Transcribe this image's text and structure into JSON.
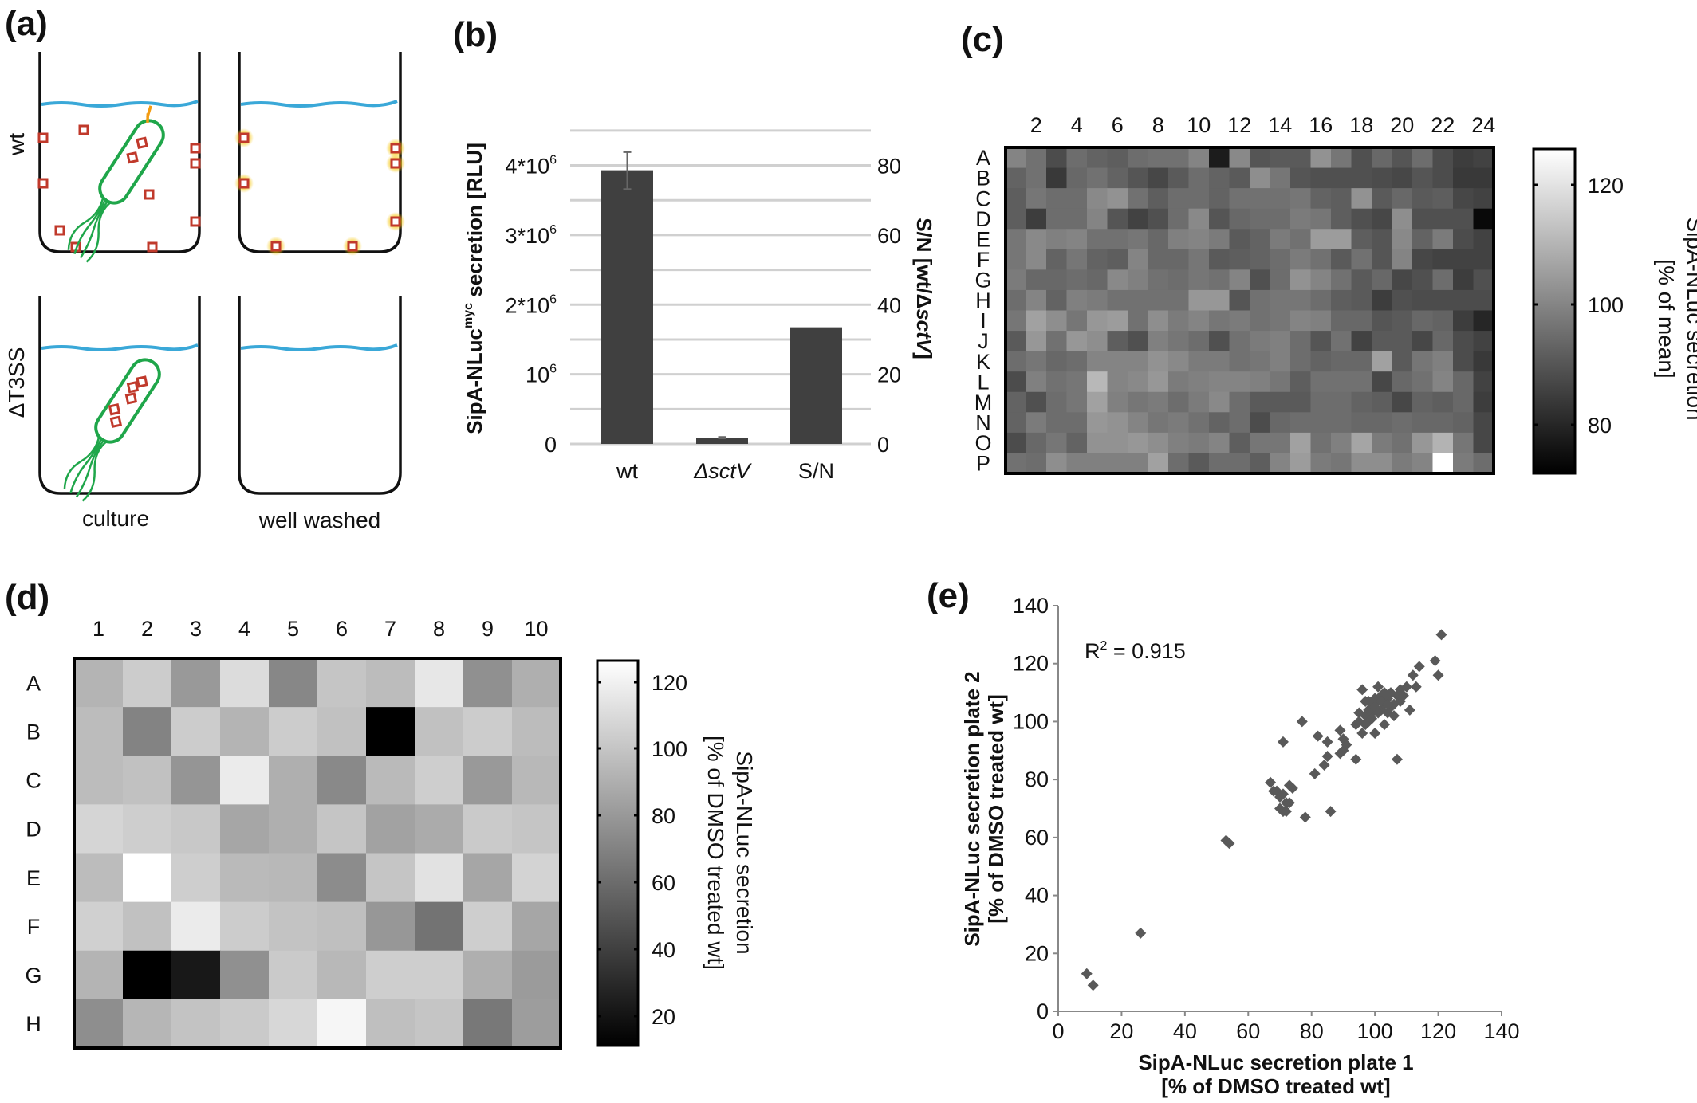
{
  "panel_labels": {
    "a": "(a)",
    "b": "(b)",
    "c": "(c)",
    "d": "(d)",
    "e": "(e)"
  },
  "diagram": {
    "row_labels": [
      "wt",
      "ΔT3SS"
    ],
    "column_labels": [
      "culture",
      "well washed"
    ],
    "colors": {
      "well": "#111111",
      "medium": "#3aa8d8",
      "bacterium": "#1fa64a",
      "protein": "#c0392b",
      "needle": "#f39c12",
      "luminescence": "#f5c400"
    }
  },
  "chart_data": [
    {
      "panel": "b",
      "type": "bar",
      "categories": [
        "wt",
        "ΔsctV",
        "S/N"
      ],
      "ylabel_left": {
        "main": "SipA-NLuc",
        "sup": "myc",
        "rest": " secretion [RLU]"
      },
      "ylabel_right": {
        "main": "S/N [wt/Δ",
        "italic": "sctV",
        "rest": "]"
      },
      "left_ticks": [
        {
          "value": 0,
          "label": "0"
        },
        {
          "value": 1000000,
          "label": "10",
          "sup": "6"
        },
        {
          "value": 2000000,
          "label": "2*10",
          "sup": "6"
        },
        {
          "value": 3000000,
          "label": "3*10",
          "sup": "6"
        },
        {
          "value": 4000000,
          "label": "4*10",
          "sup": "6"
        }
      ],
      "right_ticks": [
        "0",
        "20",
        "40",
        "60",
        "80"
      ],
      "ylim_left": [
        0,
        4500000
      ],
      "ylim_right": [
        0,
        90
      ],
      "grid": true,
      "bars": [
        {
          "category": "wt",
          "axis": "left",
          "value": 3930000,
          "error": [
            3660000,
            4190000
          ]
        },
        {
          "category": "ΔsctV",
          "axis": "left",
          "value": 90000,
          "error": [
            80000,
            100000
          ]
        },
        {
          "category": "S/N",
          "axis": "right",
          "value": 33.5
        }
      ],
      "bar_color": "#404040"
    },
    {
      "panel": "c",
      "type": "heatmap",
      "rows": [
        "A",
        "B",
        "C",
        "D",
        "E",
        "F",
        "G",
        "H",
        "I",
        "J",
        "K",
        "L",
        "M",
        "N",
        "O",
        "P"
      ],
      "column_tick_labels": [
        "2",
        "4",
        "6",
        "8",
        "10",
        "12",
        "14",
        "16",
        "18",
        "20",
        "22",
        "24"
      ],
      "columns": 24,
      "colorbar": {
        "ticks": [
          "80",
          "100",
          "120"
        ],
        "range": [
          72,
          126
        ],
        "colormap": "gray",
        "title": "SipA-NLuc secretion",
        "subtitle": "[% of mean]"
      },
      "values": [
        [
          100,
          96,
          88,
          95,
          93,
          92,
          95,
          96,
          96,
          100,
          78,
          101,
          90,
          91,
          91,
          103,
          97,
          89,
          94,
          90,
          95,
          88,
          85,
          86
        ],
        [
          93,
          96,
          84,
          94,
          96,
          93,
          90,
          87,
          91,
          95,
          93,
          91,
          102,
          97,
          90,
          89,
          89,
          89,
          88,
          87,
          90,
          88,
          84,
          84
        ],
        [
          92,
          97,
          95,
          95,
          101,
          103,
          96,
          92,
          95,
          95,
          93,
          96,
          96,
          96,
          97,
          93,
          92,
          103,
          91,
          94,
          91,
          92,
          87,
          86
        ],
        [
          92,
          85,
          95,
          95,
          100,
          90,
          86,
          89,
          95,
          101,
          90,
          94,
          95,
          95,
          98,
          97,
          92,
          89,
          87,
          102,
          89,
          89,
          89,
          74
        ],
        [
          97,
          101,
          99,
          100,
          96,
          96,
          97,
          94,
          99,
          100,
          98,
          91,
          93,
          98,
          96,
          105,
          105,
          92,
          90,
          101,
          93,
          98,
          88,
          86
        ],
        [
          97,
          101,
          93,
          97,
          93,
          92,
          100,
          94,
          94,
          97,
          91,
          92,
          93,
          95,
          98,
          96,
          91,
          96,
          90,
          100,
          87,
          86,
          86,
          86
        ],
        [
          98,
          94,
          94,
          95,
          94,
          101,
          99,
          96,
          95,
          97,
          96,
          100,
          89,
          95,
          103,
          100,
          96,
          91,
          94,
          87,
          89,
          95,
          85,
          89
        ],
        [
          95,
          100,
          93,
          99,
          98,
          96,
          96,
          96,
          96,
          104,
          104,
          90,
          96,
          97,
          97,
          95,
          92,
          91,
          85,
          89,
          88,
          88,
          88,
          88
        ],
        [
          97,
          106,
          102,
          97,
          104,
          105,
          96,
          102,
          98,
          100,
          97,
          98,
          96,
          97,
          100,
          99,
          94,
          94,
          90,
          91,
          94,
          93,
          85,
          80
        ],
        [
          91,
          104,
          96,
          104,
          102,
          92,
          89,
          99,
          97,
          95,
          89,
          96,
          98,
          99,
          95,
          90,
          96,
          86,
          91,
          91,
          87,
          94,
          88,
          86
        ],
        [
          95,
          97,
          94,
          95,
          100,
          100,
          100,
          103,
          101,
          98,
          98,
          96,
          97,
          99,
          95,
          93,
          94,
          94,
          106,
          91,
          97,
          99,
          88,
          84
        ],
        [
          88,
          99,
          96,
          97,
          111,
          100,
          101,
          104,
          98,
          99,
          100,
          100,
          99,
          97,
          92,
          96,
          96,
          96,
          87,
          94,
          96,
          100,
          94,
          86
        ],
        [
          93,
          89,
          95,
          97,
          106,
          99,
          97,
          98,
          95,
          98,
          101,
          95,
          91,
          91,
          91,
          95,
          95,
          93,
          92,
          87,
          93,
          92,
          94,
          85
        ],
        [
          93,
          98,
          95,
          95,
          104,
          103,
          100,
          97,
          98,
          96,
          93,
          95,
          88,
          94,
          95,
          95,
          95,
          94,
          94,
          95,
          94,
          94,
          93,
          87
        ],
        [
          88,
          94,
          97,
          93,
          103,
          103,
          104,
          102,
          99,
          98,
          100,
          92,
          97,
          97,
          106,
          96,
          99,
          107,
          98,
          96,
          104,
          110,
          97,
          87
        ],
        [
          96,
          95,
          102,
          99,
          99,
          99,
          99,
          106,
          95,
          91,
          95,
          95,
          92,
          100,
          105,
          98,
          97,
          102,
          102,
          98,
          100,
          126,
          98,
          95
        ]
      ]
    },
    {
      "panel": "d",
      "type": "heatmap",
      "rows": [
        "A",
        "B",
        "C",
        "D",
        "E",
        "F",
        "G",
        "H"
      ],
      "column_tick_labels": [
        "1",
        "2",
        "3",
        "4",
        "5",
        "6",
        "7",
        "8",
        "9",
        "10"
      ],
      "columns": 10,
      "colorbar": {
        "ticks": [
          "20",
          "40",
          "60",
          "80",
          "100",
          "120"
        ],
        "range": [
          11,
          126
        ],
        "colormap": "gray",
        "title": "SipA-NLuc secretion",
        "subtitle": "[% of DMSO treated wt]"
      },
      "values": [
        [
          92,
          103,
          80,
          110,
          72,
          100,
          96,
          115,
          76,
          90
        ],
        [
          96,
          70,
          103,
          92,
          103,
          98,
          11,
          98,
          103,
          96
        ],
        [
          96,
          98,
          78,
          117,
          90,
          73,
          95,
          104,
          80,
          94
        ],
        [
          107,
          104,
          101,
          86,
          90,
          100,
          84,
          88,
          102,
          100
        ],
        [
          96,
          126,
          104,
          95,
          94,
          74,
          100,
          113,
          86,
          106
        ],
        [
          105,
          98,
          117,
          103,
          99,
          97,
          79,
          63,
          104,
          86
        ],
        [
          92,
          11,
          22,
          76,
          102,
          94,
          104,
          104,
          90,
          81
        ],
        [
          75,
          93,
          99,
          102,
          108,
          122,
          97,
          100,
          65,
          82
        ]
      ]
    },
    {
      "panel": "e",
      "type": "scatter",
      "xlabel": "SipA-NLuc secretion plate 1",
      "xlabel2": "[% of DMSO treated wt]",
      "ylabel": "SipA-NLuc secretion plate 2",
      "ylabel2": "[% of DMSO treated wt]",
      "xlim": [
        0,
        140
      ],
      "ylim": [
        0,
        140
      ],
      "xticks": [
        "0",
        "20",
        "40",
        "60",
        "80",
        "100",
        "120",
        "140"
      ],
      "yticks": [
        "0",
        "20",
        "40",
        "60",
        "80",
        "100",
        "120",
        "140"
      ],
      "annotation": {
        "text": "R",
        "sup": "2",
        "rest": " = 0.915"
      },
      "marker": "diamond",
      "marker_color": "#595959",
      "points": [
        [
          9,
          13
        ],
        [
          11,
          9
        ],
        [
          26,
          27
        ],
        [
          53,
          59
        ],
        [
          54,
          58
        ],
        [
          67,
          79
        ],
        [
          68,
          76
        ],
        [
          69,
          76
        ],
        [
          70,
          74
        ],
        [
          70,
          70
        ],
        [
          71,
          69
        ],
        [
          72,
          72
        ],
        [
          71,
          75
        ],
        [
          72,
          69
        ],
        [
          73,
          72
        ],
        [
          73,
          78
        ],
        [
          74,
          77
        ],
        [
          71,
          93
        ],
        [
          77,
          100
        ],
        [
          78,
          67
        ],
        [
          81,
          82
        ],
        [
          82,
          95
        ],
        [
          84,
          85
        ],
        [
          85,
          88
        ],
        [
          85,
          93
        ],
        [
          86,
          69
        ],
        [
          89,
          89
        ],
        [
          89,
          97
        ],
        [
          90,
          94
        ],
        [
          90,
          90
        ],
        [
          91,
          92
        ],
        [
          94,
          87
        ],
        [
          94,
          99
        ],
        [
          95,
          103
        ],
        [
          95,
          100
        ],
        [
          96,
          96
        ],
        [
          96,
          111
        ],
        [
          97,
          102
        ],
        [
          97,
          99
        ],
        [
          98,
          104
        ],
        [
          98,
          100
        ],
        [
          99,
          106
        ],
        [
          99,
          103
        ],
        [
          100,
          108
        ],
        [
          100,
          105
        ],
        [
          100,
          96
        ],
        [
          101,
          112
        ],
        [
          101,
          107
        ],
        [
          102,
          104
        ],
        [
          102,
          109
        ],
        [
          103,
          106
        ],
        [
          103,
          99
        ],
        [
          104,
          103
        ],
        [
          104,
          108
        ],
        [
          105,
          105
        ],
        [
          105,
          110
        ],
        [
          106,
          106
        ],
        [
          106,
          102
        ],
        [
          107,
          109
        ],
        [
          107,
          87
        ],
        [
          108,
          107
        ],
        [
          108,
          111
        ],
        [
          109,
          109
        ],
        [
          110,
          112
        ],
        [
          111,
          104
        ],
        [
          112,
          116
        ],
        [
          113,
          112
        ],
        [
          114,
          119
        ],
        [
          119,
          121
        ],
        [
          120,
          116
        ],
        [
          121,
          130
        ],
        [
          97,
          107
        ],
        [
          99,
          101
        ],
        [
          102,
          107
        ],
        [
          104,
          106
        ],
        [
          101,
          103
        ],
        [
          103,
          110
        ],
        [
          98,
          107
        ]
      ]
    }
  ]
}
